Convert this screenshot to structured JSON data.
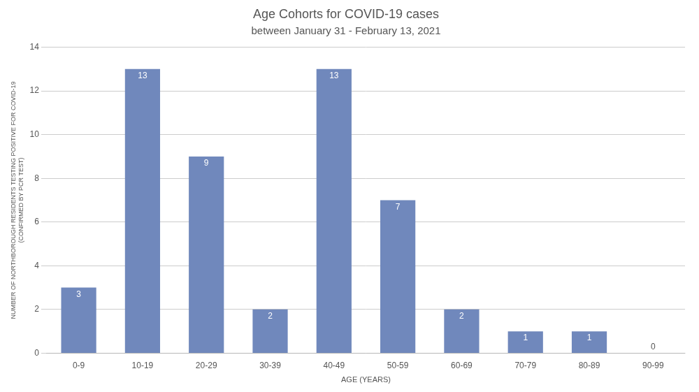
{
  "chart_data": {
    "type": "bar",
    "title": "Age Cohorts for COVID-19 cases",
    "subtitle": "between January 31 - February 13, 2021",
    "xlabel": "AGE (YEARS)",
    "ylabel": [
      "NUMBER OF NORTHBOROUGH RESIDENTS TESTING POSITIVE FOR COVID-19",
      "(CONFIRMED BY PCR TEST)"
    ],
    "categories": [
      "0-9",
      "10-19",
      "20-29",
      "30-39",
      "40-49",
      "50-59",
      "60-69",
      "70-79",
      "80-89",
      "90-99"
    ],
    "values": [
      3,
      13,
      9,
      2,
      13,
      7,
      2,
      1,
      1,
      0
    ],
    "color": "#7088bc",
    "ylim": [
      0,
      14
    ],
    "yticks": [
      0,
      2,
      4,
      6,
      8,
      10,
      12,
      14
    ],
    "grid": true,
    "data_labels": true
  }
}
